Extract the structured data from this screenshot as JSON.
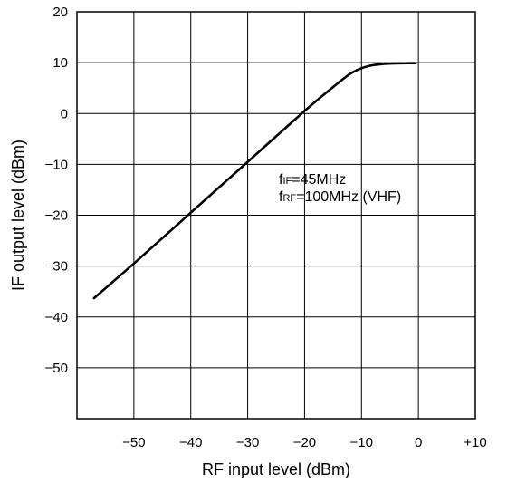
{
  "chart_data": {
    "type": "line",
    "xlabel": "RF input level (dBm)",
    "ylabel": "IF output level (dBm)",
    "xlim": [
      -60,
      10
    ],
    "ylim": [
      -60,
      20
    ],
    "x_ticks": [
      {
        "value": -50,
        "label": "−50"
      },
      {
        "value": -40,
        "label": "−40"
      },
      {
        "value": -30,
        "label": "−30"
      },
      {
        "value": -20,
        "label": "−20"
      },
      {
        "value": -10,
        "label": "−10"
      },
      {
        "value": 0,
        "label": "0"
      },
      {
        "value": 10,
        "label": "+10"
      }
    ],
    "y_ticks": [
      {
        "value": 20,
        "label": "20"
      },
      {
        "value": 10,
        "label": "10"
      },
      {
        "value": 0,
        "label": "0"
      },
      {
        "value": -10,
        "label": "−10"
      },
      {
        "value": -20,
        "label": "−20"
      },
      {
        "value": -30,
        "label": "−30"
      },
      {
        "value": -40,
        "label": "−40"
      },
      {
        "value": -50,
        "label": "−50"
      }
    ],
    "grid": true,
    "series": [
      {
        "x": [
          -57,
          -50,
          -40,
          -30,
          -20,
          -15,
          -12,
          -10,
          -8,
          -6,
          -4,
          -2,
          -0.5
        ],
        "y": [
          -36.3,
          -29.5,
          -19.5,
          -9.5,
          0.5,
          5.2,
          7.8,
          8.9,
          9.5,
          9.75,
          9.85,
          9.9,
          9.9
        ]
      }
    ],
    "annotations": [
      {
        "main": "f",
        "sub": "IF",
        "rest": "=45MHz"
      },
      {
        "main": "f",
        "sub": "RF",
        "rest": "=100MHz (VHF)"
      }
    ]
  }
}
